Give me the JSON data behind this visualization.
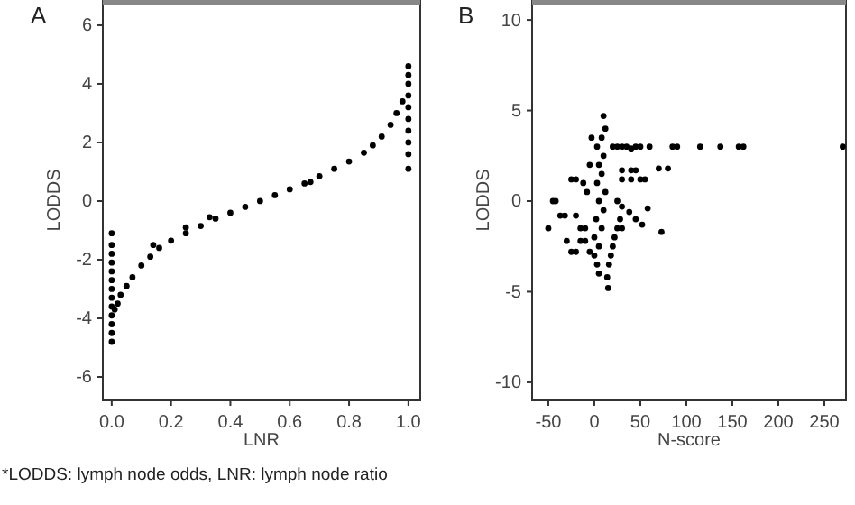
{
  "chart_data": [
    {
      "type": "scatter",
      "title": "A",
      "xlabel": "LNR",
      "ylabel": "LODDS",
      "xlim": [
        -0.03,
        1.04
      ],
      "ylim": [
        -6.8,
        6.86
      ],
      "xticks": [
        {
          "value": 0,
          "label": "0.0"
        },
        0.2,
        0.4,
        0.6,
        0.8,
        {
          "value": 1,
          "label": "1.0"
        }
      ],
      "yticks": [
        -6,
        -4,
        -2,
        0,
        2,
        4,
        6
      ],
      "grid": false,
      "marker": "circle",
      "series": [
        {
          "color": "#000000",
          "x": [
            0,
            0,
            0,
            0,
            0,
            0,
            0,
            0,
            0,
            0,
            0,
            0,
            0,
            0.01,
            0.02,
            0.03,
            0.05,
            0.07,
            0.1,
            0.13,
            0.16,
            0.2,
            0.25,
            0.3,
            0.35,
            0.4,
            0.45,
            0.5,
            0.55,
            0.6,
            0.65,
            0.7,
            0.75,
            0.8,
            0.85,
            0.88,
            0.91,
            0.94,
            0.96,
            0.98,
            1,
            1,
            1,
            1,
            1,
            1,
            1,
            1,
            1,
            1,
            0.25,
            0.33,
            0.67,
            0.14
          ],
          "values": [
            -4.8,
            -4.5,
            -4.2,
            -3.9,
            -3.6,
            -3.3,
            -3.0,
            -2.7,
            -2.4,
            -2.1,
            -1.8,
            -1.5,
            -1.1,
            -3.7,
            -3.5,
            -3.2,
            -2.9,
            -2.6,
            -2.2,
            -1.9,
            -1.6,
            -1.35,
            -1.1,
            -0.85,
            -0.6,
            -0.4,
            -0.2,
            0,
            0.2,
            0.4,
            0.6,
            0.85,
            1.1,
            1.35,
            1.65,
            1.9,
            2.2,
            2.6,
            3.0,
            3.4,
            1.1,
            1.6,
            2.0,
            2.4,
            2.8,
            3.2,
            3.6,
            4.0,
            4.3,
            4.6,
            -0.9,
            -0.55,
            0.65,
            -1.5
          ]
        }
      ]
    },
    {
      "type": "scatter",
      "title": "B",
      "xlabel": "N-score",
      "ylabel": "LODDS",
      "xlim": [
        -67.6,
        273.5
      ],
      "ylim": [
        -11,
        11.1
      ],
      "xticks": [
        -50,
        0,
        50,
        100,
        150,
        200,
        250
      ],
      "yticks": [
        -10,
        -5,
        0,
        5,
        10
      ],
      "grid": false,
      "marker": "circle",
      "series": [
        {
          "color": "#000000",
          "x": [
            20,
            25,
            30,
            35,
            40,
            45,
            50,
            60,
            85,
            90,
            115,
            137,
            157,
            162,
            270,
            70,
            80,
            30,
            40,
            45,
            30,
            40,
            50,
            55,
            73,
            58,
            -45,
            -42,
            -37,
            -32,
            -50,
            -25,
            -20,
            -30,
            -25,
            15,
            14,
            16,
            18,
            20,
            22,
            25,
            28,
            30,
            25,
            30,
            38,
            45,
            52,
            5,
            3,
            0,
            5,
            0,
            8,
            2,
            10,
            5,
            12,
            3,
            8,
            5,
            10,
            3,
            8,
            12,
            10,
            -5,
            -10,
            -15,
            -20,
            -8,
            -12,
            -5,
            -3,
            -20,
            -15,
            -10
          ],
          "values": [
            3,
            3,
            3,
            3,
            2.9,
            3,
            3,
            3,
            3,
            3,
            3,
            3,
            3,
            3,
            3,
            1.8,
            1.8,
            1.7,
            1.7,
            1.7,
            1.2,
            1.2,
            1.2,
            1.2,
            -1.7,
            -0.4,
            0,
            0,
            -0.8,
            -0.8,
            -1.5,
            1.2,
            1.2,
            -2.2,
            -2.8,
            -4.8,
            -4.2,
            -3.5,
            -3,
            -2.5,
            -2,
            -1.5,
            -1,
            -1.5,
            0,
            -0.3,
            -0.6,
            -1,
            -1.3,
            -4,
            -3.5,
            -3,
            -2.5,
            -2,
            -1.5,
            -1,
            -0.5,
            0,
            0.5,
            1,
            1.5,
            2,
            2.5,
            3,
            3.5,
            4,
            4.7,
            -2.8,
            -2.2,
            -1.5,
            -0.8,
            0.5,
            1,
            2,
            3.5,
            -2.8,
            -2.2,
            -1.5
          ]
        }
      ],
      "annotations": [
        "*LODDS: lymph node odds, LNR: lymph node ratio"
      ]
    }
  ]
}
